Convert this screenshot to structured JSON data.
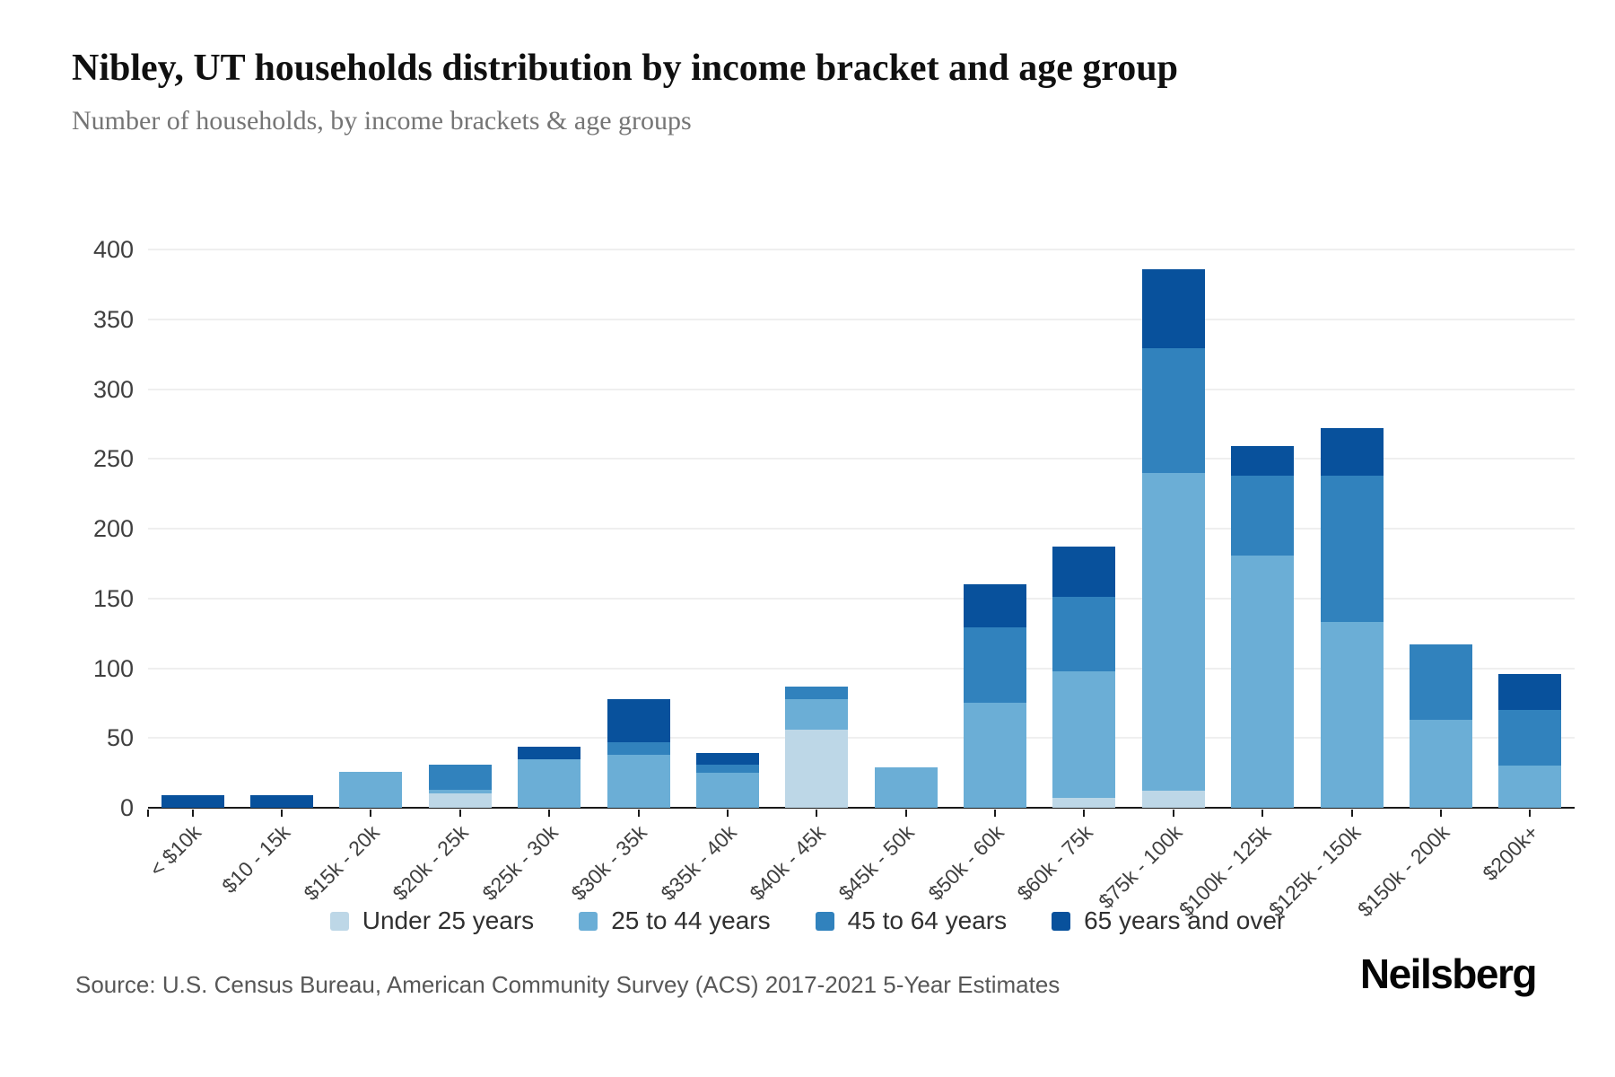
{
  "page": {
    "title": "Nibley, UT households distribution by income bracket and age group",
    "subtitle": "Number of households, by income brackets & age groups",
    "source": "Source: U.S. Census Bureau, American Community Survey (ACS) 2017-2021 5-Year Estimates",
    "logo": "Neilsberg",
    "background": "#ffffff"
  },
  "chart_data": {
    "type": "bar",
    "stacked": true,
    "title": "Nibley, UT households distribution by income bracket and age group",
    "subtitle": "Number of households, by income brackets & age groups",
    "xlabel": "",
    "ylabel": "Number of households",
    "ylim": [
      0,
      400
    ],
    "yticks": [
      0,
      50,
      100,
      150,
      200,
      250,
      300,
      350,
      400
    ],
    "grid": "horizontal",
    "grid_color": "#efefef",
    "axis_color": "#1a1a1a",
    "legend_position": "bottom",
    "categories": [
      "< $10k",
      "$10 - 15k",
      "$15k - 20k",
      "$20k - 25k",
      "$25k - 30k",
      "$30k - 35k",
      "$35k - 40k",
      "$40k - 45k",
      "$45k - 50k",
      "$50k - 60k",
      "$60k - 75k",
      "$75k - 100k",
      "$100k - 125k",
      "$125k - 150k",
      "$150k - 200k",
      "$200k+"
    ],
    "series": [
      {
        "name": "Under 25 years",
        "color": "#bdd7e7",
        "values": [
          0,
          0,
          0,
          10,
          0,
          0,
          0,
          56,
          0,
          0,
          7,
          12,
          0,
          0,
          0,
          0
        ]
      },
      {
        "name": "25 to 44 years",
        "color": "#6baed6",
        "values": [
          0,
          0,
          26,
          3,
          35,
          38,
          25,
          22,
          29,
          75,
          91,
          228,
          181,
          133,
          63,
          30
        ]
      },
      {
        "name": "45 to 64 years",
        "color": "#3182bd",
        "values": [
          0,
          0,
          0,
          18,
          0,
          9,
          6,
          9,
          0,
          54,
          53,
          89,
          57,
          105,
          54,
          40
        ]
      },
      {
        "name": "65 years and over",
        "color": "#08519c",
        "values": [
          9,
          9,
          0,
          0,
          9,
          31,
          8,
          0,
          0,
          31,
          36,
          57,
          21,
          34,
          0,
          26
        ]
      }
    ],
    "totals": [
      9,
      9,
      26,
      31,
      44,
      78,
      39,
      87,
      29,
      160,
      187,
      386,
      259,
      272,
      117,
      96
    ]
  }
}
